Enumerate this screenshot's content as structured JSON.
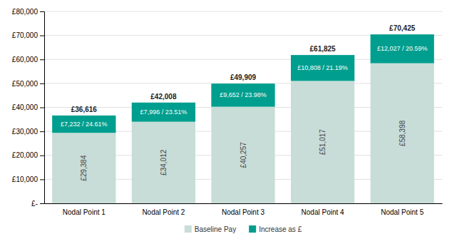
{
  "chart_data": {
    "type": "bar",
    "stacked": true,
    "categories": [
      "Nodal Point 1",
      "Nodal Point 2",
      "Nodal Point 3",
      "Nodal Point 4",
      "Nodal Point 5"
    ],
    "series": [
      {
        "name": "Baseline Pay",
        "color": "#c8ddd8",
        "values": [
          29384,
          34012,
          40257,
          51017,
          58398
        ],
        "value_labels": [
          "£29,384",
          "£34,012",
          "£40,257",
          "£51,017",
          "£58,398"
        ]
      },
      {
        "name": "Increase as £",
        "color": "#009e8e",
        "values": [
          7232,
          7996,
          9652,
          10808,
          12027
        ],
        "value_labels": [
          "£7,232 / 24.61%",
          "£7,996 / 23.51%",
          "£9,652 / 23.98%",
          "£10,808 / 21.19%",
          "£12,027 / 20.59%"
        ]
      }
    ],
    "totals": [
      36616,
      42008,
      49909,
      61825,
      70425
    ],
    "total_labels": [
      "£36,616",
      "£42,008",
      "£49,909",
      "£61,825",
      "£70,425"
    ],
    "ylim": [
      0,
      80000
    ],
    "yticks": [
      {
        "value": 0,
        "label": "£-"
      },
      {
        "value": 10000,
        "label": "£10,000"
      },
      {
        "value": 20000,
        "label": "£20,000"
      },
      {
        "value": 30000,
        "label": "£30,000"
      },
      {
        "value": 40000,
        "label": "£40,000"
      },
      {
        "value": 50000,
        "label": "£50,000"
      },
      {
        "value": 60000,
        "label": "£60,000"
      },
      {
        "value": 70000,
        "label": "£70,000"
      },
      {
        "value": 80000,
        "label": "£80,000"
      }
    ],
    "grid": true,
    "legend": "bottom",
    "data_labels": true
  }
}
